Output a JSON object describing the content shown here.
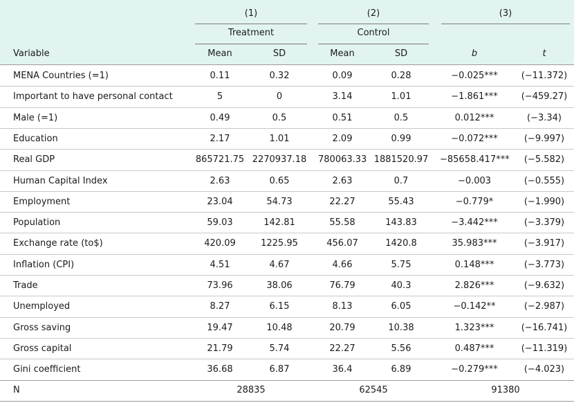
{
  "header": {
    "groups": [
      "(1)",
      "(2)",
      "(3)"
    ],
    "group_names": [
      "Treatment",
      "Control"
    ],
    "variable_label": "Variable",
    "col_labels": [
      "Mean",
      "SD",
      "Mean",
      "SD",
      "b",
      "t"
    ]
  },
  "rows": [
    [
      "MENA Countries (=1)",
      "0.11",
      "0.32",
      "0.09",
      "0.28",
      "−0.025***",
      "(−11.372)"
    ],
    [
      "Important to have personal contact",
      "5",
      "0",
      "3.14",
      "1.01",
      "−1.861***",
      "(−459.27)"
    ],
    [
      "Male (=1)",
      "0.49",
      "0.5",
      "0.51",
      "0.5",
      "0.012***",
      "(−3.34)"
    ],
    [
      "Education",
      "2.17",
      "1.01",
      "2.09",
      "0.99",
      "−0.072***",
      "(−9.997)"
    ],
    [
      "Real GDP",
      "865721.75",
      "2270937.18",
      "780063.33",
      "1881520.97",
      "−85658.417***",
      "(−5.582)"
    ],
    [
      "Human Capital Index",
      "2.63",
      "0.65",
      "2.63",
      "0.7",
      "−0.003",
      "(−0.555)"
    ],
    [
      "Employment",
      "23.04",
      "54.73",
      "22.27",
      "55.43",
      "−0.779*",
      "(−1.990)"
    ],
    [
      "Population",
      "59.03",
      "142.81",
      "55.58",
      "143.83",
      "−3.442***",
      "(−3.379)"
    ],
    [
      "Exchange rate (to$)",
      "420.09",
      "1225.95",
      "456.07",
      "1420.8",
      "35.983***",
      "(−3.917)"
    ],
    [
      "Inflation (CPI)",
      "4.51",
      "4.67",
      "4.66",
      "5.75",
      "0.148***",
      "(−3.773)"
    ],
    [
      "Trade",
      "73.96",
      "38.06",
      "76.79",
      "40.3",
      "2.826***",
      "(−9.632)"
    ],
    [
      "Unemployed",
      "8.27",
      "6.15",
      "8.13",
      "6.05",
      "−0.142**",
      "(−2.987)"
    ],
    [
      "Gross saving",
      "19.47",
      "10.48",
      "20.79",
      "10.38",
      "1.323***",
      "(−16.741)"
    ],
    [
      "Gross capital",
      "21.79",
      "5.74",
      "22.27",
      "5.56",
      "0.487***",
      "(−11.319)"
    ],
    [
      "Gini coefficient",
      "36.68",
      "6.87",
      "36.4",
      "6.89",
      "−0.279***",
      "(−4.023)"
    ]
  ],
  "n_row": {
    "label": "N",
    "values": [
      "28835",
      "62545",
      "91380"
    ]
  }
}
